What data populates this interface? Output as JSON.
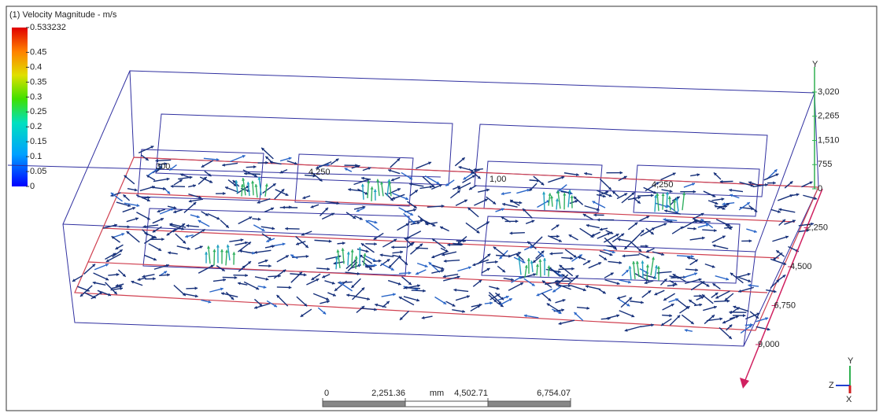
{
  "legend": {
    "title": "(1) Velocity Magnitude - m/s",
    "ticks": [
      0.533232,
      0.45,
      0.4,
      0.35,
      0.3,
      0.25,
      0.2,
      0.15,
      0.1,
      0.05,
      0
    ]
  },
  "axes": {
    "y": {
      "name": "Y",
      "ticks": [
        {
          "value": 3020,
          "label": "3,020"
        },
        {
          "value": 2265,
          "label": "2,265"
        },
        {
          "value": 1510,
          "label": "1,510"
        },
        755,
        0
      ]
    },
    "z": {
      "ticks": [
        {
          "value": 2250,
          "label": "2,250"
        },
        {
          "value": 4500,
          "label": "4,500"
        },
        {
          "value": 6750,
          "label": "6,750"
        },
        {
          "value": 9000,
          "label": "9,000"
        }
      ]
    }
  },
  "scene_labels": [
    "300",
    "4,250",
    "1,00",
    "4,250"
  ],
  "triad": {
    "y": "Y",
    "z": "Z",
    "x": "X"
  },
  "scale_bar": {
    "ticks": [
      0,
      {
        "value": 2251.36,
        "label": "2,251.36"
      },
      {
        "value": 4502.71,
        "label": "4,502.71"
      },
      {
        "value": 6754.07,
        "label": "6,754.07"
      }
    ],
    "unit": "mm"
  }
}
